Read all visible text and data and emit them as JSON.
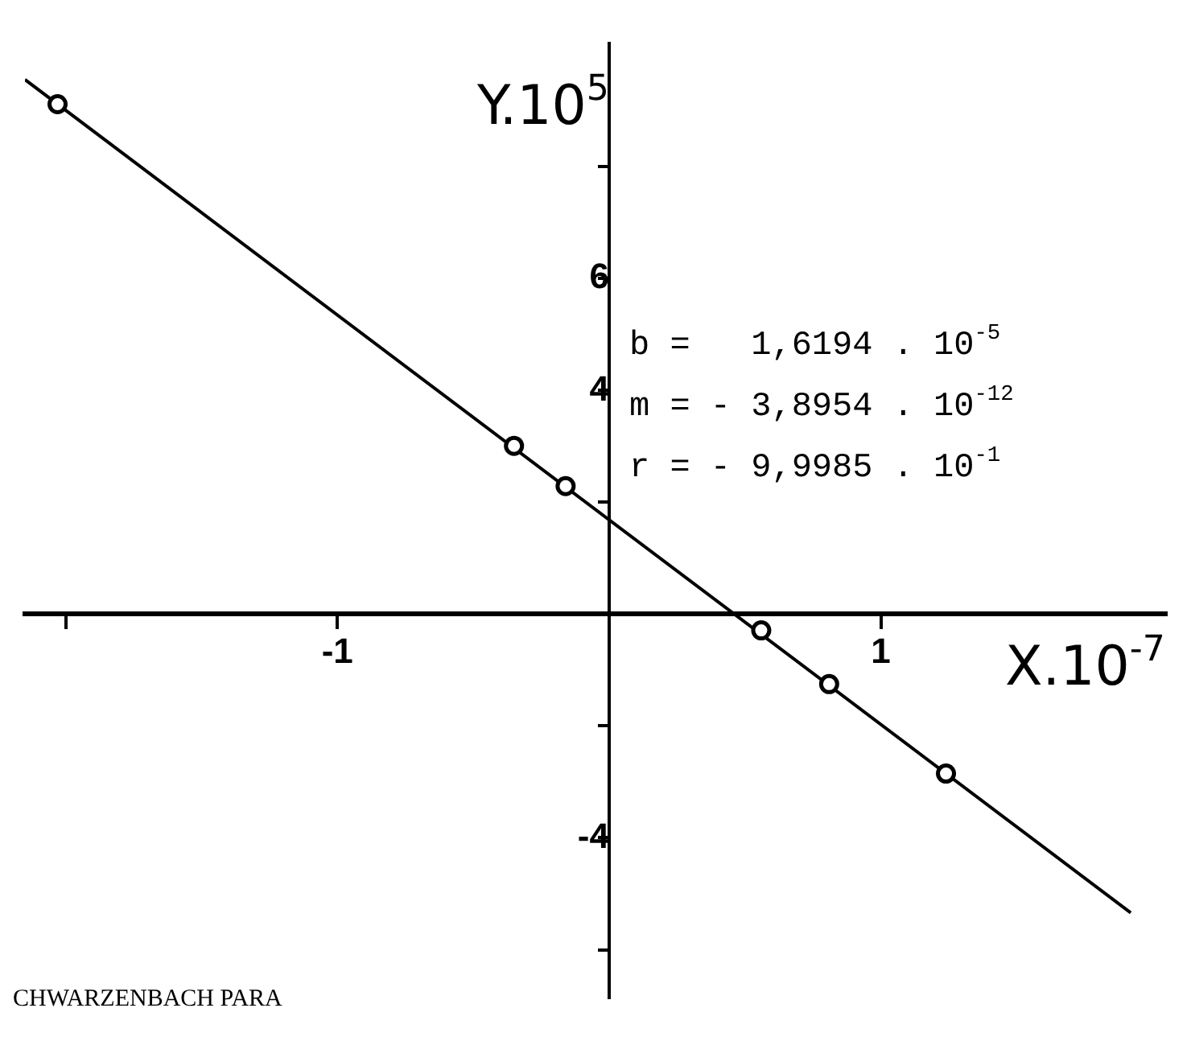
{
  "chart_data": {
    "type": "scatter",
    "xlabel": "X.10$^{-7}$",
    "ylabel": "Y.10$^{5}$",
    "xlim": [
      -2.15,
      2.05
    ],
    "ylim": [
      -6.85,
      10.2
    ],
    "xticks": [
      {
        "value": -2,
        "label": null
      },
      -1,
      1
    ],
    "yticks": [
      {
        "value": -6,
        "label": null
      },
      -4,
      {
        "value": -2,
        "label": null
      },
      {
        "value": 2,
        "label": null
      },
      4,
      6,
      {
        "value": 8,
        "label": null
      }
    ],
    "grid": false,
    "legend": false,
    "series": [
      {
        "color": "#000000",
        "marker": "circle",
        "x": [
          -2.03,
          -0.35,
          -0.16,
          0.56,
          0.81,
          1.24
        ],
        "values": [
          9.12,
          3.01,
          2.29,
          -0.29,
          -1.25,
          -2.85
        ]
      },
      {
        "type": "line",
        "color": "#000000",
        "marker": "none",
        "line_style": "solid",
        "x": [
          -2.15,
          1.92
        ],
        "values": [
          9.56,
          -5.34
        ]
      }
    ],
    "annotations": [
      "b =   1,6194 . 10$^{-5}$",
      "m = - 3,8954 . 10$^{-12}$",
      "r = - 9,9985 . 10$^{-1}$",
      "CHWARZENBACH PARA"
    ]
  }
}
